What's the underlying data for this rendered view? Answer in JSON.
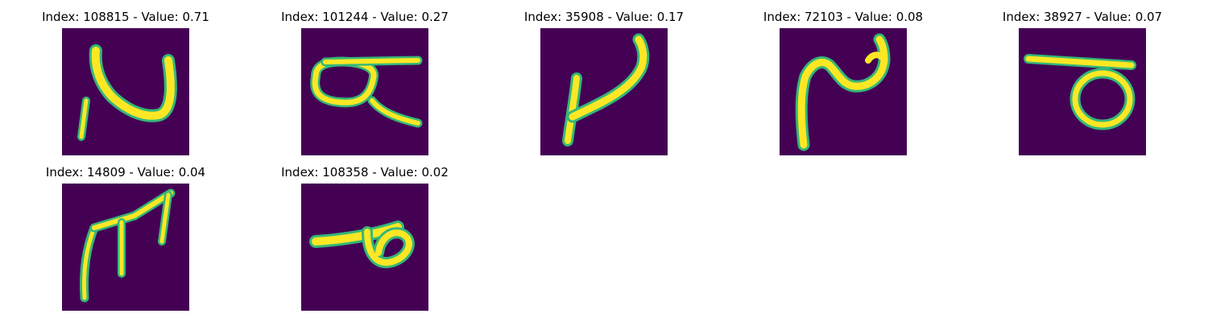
{
  "panels": [
    {
      "index": "108815",
      "value": "0.71",
      "title": "Index: 108815 - Value: 0.71",
      "glyph": "n-shape-glyph"
    },
    {
      "index": "101244",
      "value": "0.27",
      "title": "Index: 101244 - Value: 0.27",
      "glyph": "alpha-shape-glyph"
    },
    {
      "index": "35908",
      "value": "0.17",
      "title": "Index: 35908 - Value: 0.17",
      "glyph": "check-shape-glyph"
    },
    {
      "index": "72103",
      "value": "0.08",
      "title": "Index: 72103 - Value: 0.08",
      "glyph": "wave-shape-glyph"
    },
    {
      "index": "38927",
      "value": "0.07",
      "title": "Index: 38927 - Value: 0.07",
      "glyph": "loop-bar-shape-glyph"
    },
    {
      "index": "14809",
      "value": "0.04",
      "title": "Index: 14809 - Value: 0.04",
      "glyph": "arrow-shape-glyph"
    },
    {
      "index": "108358",
      "value": "0.02",
      "title": "Index: 108358 - Value: 0.02",
      "glyph": "loop-bar-small-glyph"
    }
  ],
  "colors": {
    "background": "#440154",
    "stroke": "#fde725",
    "edge": "#35b779"
  }
}
